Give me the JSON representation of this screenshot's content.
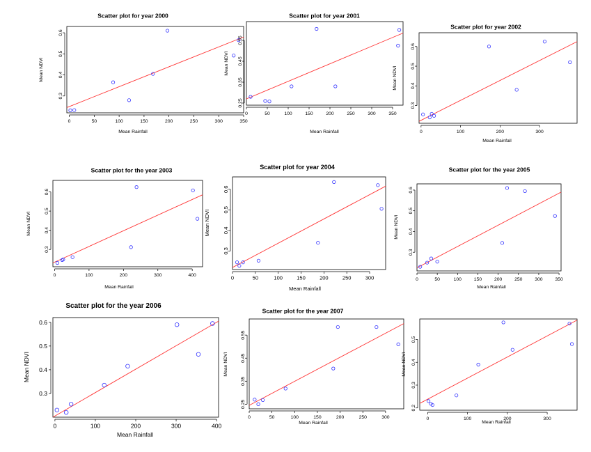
{
  "chart_data": [
    {
      "type": "scatter",
      "title": "Scatter plot for year 2000",
      "xlabel": "Mean Rainfall",
      "ylabel": "Mean NDVI",
      "xlim": [
        -5,
        350
      ],
      "ylim": [
        0.22,
        0.63
      ],
      "xticks": [
        0,
        50,
        100,
        150,
        200,
        250,
        300,
        350
      ],
      "yticks": [
        0.3,
        0.4,
        0.5,
        0.6
      ],
      "x": [
        2,
        10,
        88,
        120,
        168,
        197,
        330,
        340
      ],
      "y": [
        0.232,
        0.233,
        0.365,
        0.28,
        0.405,
        0.61,
        0.492,
        0.565
      ],
      "fit": [
        [
          -5,
          0.245
        ],
        [
          350,
          0.58
        ]
      ],
      "colors": {
        "points": "#3333ff",
        "line": "#ff3333"
      }
    },
    {
      "type": "scatter",
      "title": "Scatter plot for year 2001",
      "xlabel": "Mean Rainfall",
      "ylabel": "Mean NDVI",
      "xlim": [
        0,
        375
      ],
      "ylim": [
        0.24,
        0.64
      ],
      "xticks": [
        0,
        50,
        100,
        150,
        200,
        250,
        300,
        350
      ],
      "yticks": [
        0.25,
        0.35,
        0.45,
        0.55
      ],
      "x": [
        10,
        45,
        55,
        108,
        168,
        213,
        363,
        366
      ],
      "y": [
        0.28,
        0.26,
        0.258,
        0.33,
        0.605,
        0.33,
        0.525,
        0.6
      ],
      "fit": [
        [
          0,
          0.27
        ],
        [
          375,
          0.585
        ]
      ],
      "colors": {
        "points": "#3333ff",
        "line": "#ff3333"
      }
    },
    {
      "type": "scatter",
      "title": "Scatter plot for year 2002",
      "xlabel": "Mean Rainfall",
      "ylabel": "Mean NDVI",
      "xlim": [
        -5,
        395
      ],
      "ylim": [
        0.21,
        0.67
      ],
      "xticks": [
        0,
        100,
        200,
        300
      ],
      "yticks": [
        0.3,
        0.4,
        0.5,
        0.6
      ],
      "x": [
        5,
        22,
        27,
        33,
        172,
        242,
        313,
        377
      ],
      "y": [
        0.255,
        0.24,
        0.258,
        0.248,
        0.6,
        0.38,
        0.625,
        0.52
      ],
      "fit": [
        [
          -5,
          0.22
        ],
        [
          395,
          0.625
        ]
      ],
      "colors": {
        "points": "#3333ff",
        "line": "#ff3333"
      }
    },
    {
      "type": "scatter",
      "title": "Scatter plot for the year 2003",
      "xlabel": "Mean Rainfall",
      "ylabel": "Mean NDVI",
      "xlim": [
        -5,
        430
      ],
      "ylim": [
        0.21,
        0.66
      ],
      "xticks": [
        0,
        100,
        200,
        300,
        400
      ],
      "yticks": [
        0.3,
        0.4,
        0.5,
        0.6
      ],
      "x": [
        8,
        22,
        25,
        52,
        222,
        238,
        402,
        415
      ],
      "y": [
        0.23,
        0.245,
        0.248,
        0.26,
        0.312,
        0.625,
        0.608,
        0.46
      ],
      "fit": [
        [
          -5,
          0.23
        ],
        [
          430,
          0.585
        ]
      ],
      "colors": {
        "points": "#3333ff",
        "line": "#ff3333"
      }
    },
    {
      "type": "scatter",
      "title": "Scatter plot for year 2004",
      "xlabel": "Mean Rainfall",
      "ylabel": "Mean NDVI",
      "xlim": [
        0,
        335
      ],
      "ylim": [
        0.21,
        0.66
      ],
      "xticks": [
        0,
        50,
        100,
        150,
        200,
        250,
        300
      ],
      "yticks": [
        0.3,
        0.4,
        0.5,
        0.6
      ],
      "x": [
        10,
        15,
        23,
        57,
        187,
        222,
        318,
        326
      ],
      "y": [
        0.245,
        0.228,
        0.245,
        0.253,
        0.34,
        0.635,
        0.62,
        0.505
      ],
      "fit": [
        [
          0,
          0.22
        ],
        [
          335,
          0.615
        ]
      ],
      "colors": {
        "points": "#3333ff",
        "line": "#ff3333"
      }
    },
    {
      "type": "scatter",
      "title": "Scatter plot for the year 2005",
      "xlabel": "Mean Rainfall",
      "ylabel": "Mean NDVI",
      "xlim": [
        0,
        355
      ],
      "ylim": [
        0.21,
        0.63
      ],
      "xticks": [
        0,
        50,
        100,
        150,
        200,
        250,
        300,
        350
      ],
      "yticks": [
        0.3,
        0.4,
        0.5,
        0.6
      ],
      "x": [
        8,
        25,
        35,
        50,
        210,
        222,
        266,
        340
      ],
      "y": [
        0.23,
        0.25,
        0.27,
        0.255,
        0.345,
        0.61,
        0.595,
        0.475
      ],
      "fit": [
        [
          0,
          0.225
        ],
        [
          355,
          0.59
        ]
      ],
      "colors": {
        "points": "#3333ff",
        "line": "#ff3333"
      }
    },
    {
      "type": "scatter",
      "title": "Scatter plot for the year 2006",
      "xlabel": "Mean Rainfall",
      "ylabel": "Mean NDVI",
      "xlim": [
        -5,
        405
      ],
      "ylim": [
        0.2,
        0.62
      ],
      "xticks": [
        0,
        100,
        200,
        300,
        400
      ],
      "yticks": [
        0.3,
        0.4,
        0.5,
        0.6
      ],
      "x": [
        5,
        28,
        40,
        122,
        180,
        302,
        355,
        390
      ],
      "y": [
        0.23,
        0.22,
        0.255,
        0.335,
        0.415,
        0.59,
        0.465,
        0.595
      ],
      "fit": [
        [
          -5,
          0.2
        ],
        [
          405,
          0.605
        ]
      ],
      "colors": {
        "points": "#3333ff",
        "line": "#ff3333"
      }
    },
    {
      "type": "scatter",
      "title": "Scatter plot for the year 2007",
      "xlabel": "Mean Rainfall",
      "ylabel": "Mean NDVI",
      "xlim": [
        0,
        340
      ],
      "ylim": [
        0.23,
        0.62
      ],
      "xticks": [
        0,
        50,
        100,
        150,
        200,
        250,
        300
      ],
      "yticks": [
        0.25,
        0.35,
        0.45,
        0.55
      ],
      "x": [
        12,
        20,
        30,
        80,
        185,
        195,
        280,
        328
      ],
      "y": [
        0.27,
        0.25,
        0.268,
        0.318,
        0.405,
        0.585,
        0.585,
        0.51
      ],
      "fit": [
        [
          0,
          0.245
        ],
        [
          340,
          0.6
        ]
      ],
      "colors": {
        "points": "#3333ff",
        "line": "#ff3333"
      }
    },
    {
      "type": "scatter",
      "title": "",
      "xlabel": "Mean Rainfall",
      "ylabel": "Mean NDVI",
      "xlim": [
        -20,
        375
      ],
      "ylim": [
        0.19,
        0.59
      ],
      "xticks": [
        0,
        100,
        200,
        300
      ],
      "yticks": [
        0.2,
        0.3,
        0.4,
        0.5
      ],
      "x": [
        2,
        8,
        12,
        72,
        127,
        190,
        213,
        356,
        362
      ],
      "y": [
        0.23,
        0.218,
        0.213,
        0.255,
        0.39,
        0.575,
        0.455,
        0.57,
        0.48
      ],
      "fit": [
        [
          -20,
          0.22
        ],
        [
          375,
          0.585
        ]
      ],
      "colors": {
        "points": "#3333ff",
        "line": "#ff3333"
      }
    }
  ]
}
